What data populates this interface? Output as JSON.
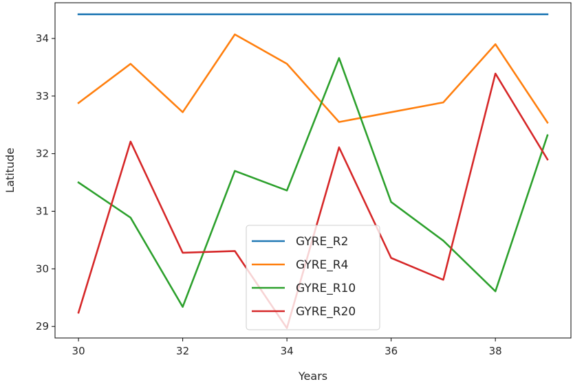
{
  "chart_data": {
    "type": "line",
    "title": "",
    "xlabel": "Years",
    "ylabel": "Latitude",
    "x": [
      30,
      31,
      32,
      33,
      34,
      35,
      36,
      37,
      38,
      39
    ],
    "xlim": [
      29.55,
      39.45
    ],
    "ylim": [
      28.8,
      34.62
    ],
    "xticks": [
      30,
      32,
      34,
      36,
      38
    ],
    "yticks": [
      29,
      30,
      31,
      32,
      33,
      34
    ],
    "grid": false,
    "legend_position": "lower-center",
    "series": [
      {
        "name": "GYRE_R2",
        "color": "#1f77b4",
        "values": [
          34.42,
          34.42,
          34.42,
          34.42,
          34.42,
          34.42,
          34.42,
          34.42,
          34.42,
          34.42
        ]
      },
      {
        "name": "GYRE_R4",
        "color": "#ff7f0e",
        "values": [
          32.88,
          33.56,
          32.72,
          34.07,
          33.56,
          32.55,
          32.72,
          32.89,
          33.9,
          32.54
        ]
      },
      {
        "name": "GYRE_R10",
        "color": "#2ca02c",
        "values": [
          31.5,
          30.89,
          29.34,
          31.7,
          31.36,
          33.66,
          31.16,
          30.49,
          29.61,
          32.32
        ]
      },
      {
        "name": "GYRE_R20",
        "color": "#d62728",
        "values": [
          29.24,
          32.21,
          30.28,
          30.31,
          28.97,
          32.11,
          30.19,
          29.81,
          33.39,
          31.9
        ]
      }
    ]
  }
}
